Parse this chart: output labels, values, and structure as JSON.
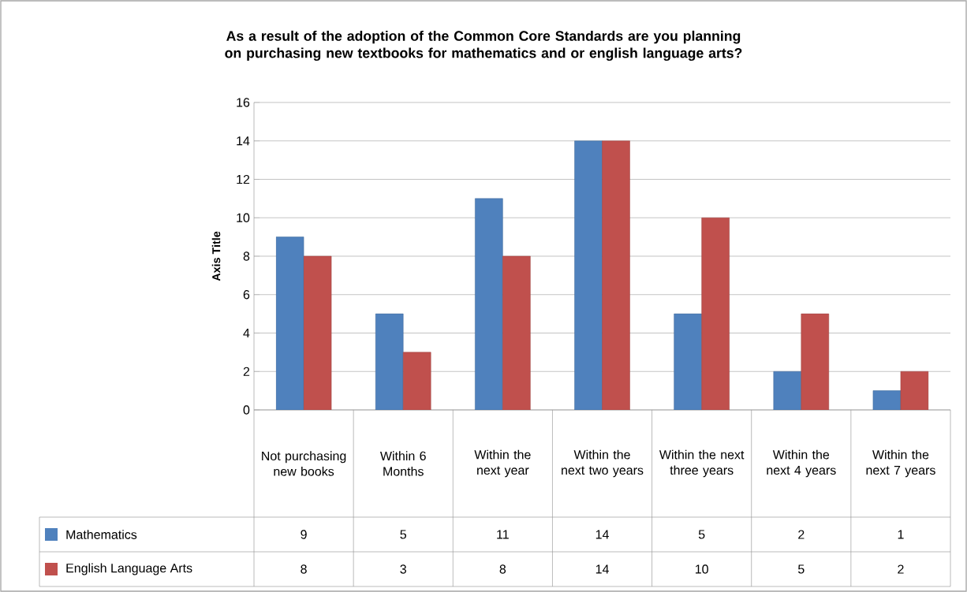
{
  "chart_data": {
    "type": "bar",
    "title": "As a result of the adoption of the Common Core Standards are you planning on purchasing new textbooks for mathematics and or english language arts?",
    "ylabel": "Axis Title",
    "categories": [
      "Not purchasing new books",
      "Within 6 Months",
      "Within the next year",
      "Within the next two years",
      "Within the next three years",
      "Within the next 4 years",
      "Within the next 7 years"
    ],
    "series": [
      {
        "name": "Mathematics",
        "color": "#4f81bd",
        "values": [
          9,
          5,
          11,
          14,
          5,
          2,
          1
        ]
      },
      {
        "name": "English Language Arts",
        "color": "#c0504d",
        "values": [
          8,
          3,
          8,
          14,
          10,
          5,
          2
        ]
      }
    ],
    "ylim": [
      0,
      16
    ],
    "yticks": [
      0,
      2,
      4,
      6,
      8,
      10,
      12,
      14,
      16
    ],
    "grid": "y",
    "legend": "bottom",
    "data_labels": true
  }
}
